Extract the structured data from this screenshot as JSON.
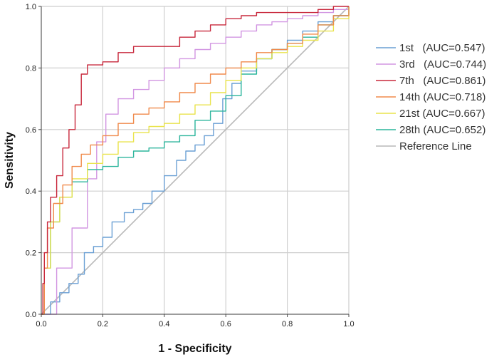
{
  "chart_data": {
    "type": "line",
    "title": "",
    "xlabel": "1 - Specificity",
    "ylabel": "Sensitivity",
    "xlim": [
      0,
      1
    ],
    "ylim": [
      0,
      1
    ],
    "x_ticks": [
      "0.0",
      "0.2",
      "0.4",
      "0.6",
      "0.8",
      "1.0"
    ],
    "y_ticks": [
      "0.0",
      "0.2",
      "0.4",
      "0.6",
      "0.8",
      "1.0"
    ],
    "grid": true,
    "legend_position": "right",
    "series": [
      {
        "name": "1st   (AUC=0.547)",
        "color": "#6a9fd4",
        "points": [
          [
            0,
            0
          ],
          [
            0.03,
            0.04
          ],
          [
            0.06,
            0.07
          ],
          [
            0.09,
            0.1
          ],
          [
            0.12,
            0.13
          ],
          [
            0.14,
            0.2
          ],
          [
            0.17,
            0.22
          ],
          [
            0.2,
            0.25
          ],
          [
            0.23,
            0.3
          ],
          [
            0.27,
            0.33
          ],
          [
            0.3,
            0.34
          ],
          [
            0.33,
            0.36
          ],
          [
            0.36,
            0.4
          ],
          [
            0.4,
            0.45
          ],
          [
            0.44,
            0.5
          ],
          [
            0.47,
            0.53
          ],
          [
            0.5,
            0.55
          ],
          [
            0.53,
            0.58
          ],
          [
            0.56,
            0.62
          ],
          [
            0.59,
            0.7
          ],
          [
            0.62,
            0.75
          ],
          [
            0.65,
            0.79
          ],
          [
            0.7,
            0.83
          ],
          [
            0.75,
            0.86
          ],
          [
            0.8,
            0.89
          ],
          [
            0.85,
            0.92
          ],
          [
            0.9,
            0.95
          ],
          [
            0.95,
            0.97
          ],
          [
            1,
            1
          ]
        ]
      },
      {
        "name": "3rd   (AUC=0.744)",
        "color": "#d296e2",
        "points": [
          [
            0,
            0
          ],
          [
            0.05,
            0.15
          ],
          [
            0.1,
            0.28
          ],
          [
            0.15,
            0.44
          ],
          [
            0.18,
            0.56
          ],
          [
            0.21,
            0.65
          ],
          [
            0.25,
            0.7
          ],
          [
            0.3,
            0.73
          ],
          [
            0.35,
            0.76
          ],
          [
            0.4,
            0.8
          ],
          [
            0.45,
            0.83
          ],
          [
            0.5,
            0.86
          ],
          [
            0.55,
            0.88
          ],
          [
            0.6,
            0.9
          ],
          [
            0.65,
            0.92
          ],
          [
            0.7,
            0.94
          ],
          [
            0.75,
            0.95
          ],
          [
            0.8,
            0.96
          ],
          [
            0.85,
            0.97
          ],
          [
            0.9,
            0.98
          ],
          [
            0.95,
            0.99
          ],
          [
            1,
            1
          ]
        ]
      },
      {
        "name": "7th   (AUC=0.861)",
        "color": "#c8283c",
        "points": [
          [
            0,
            0
          ],
          [
            0.005,
            0.1
          ],
          [
            0.01,
            0.2
          ],
          [
            0.02,
            0.3
          ],
          [
            0.03,
            0.38
          ],
          [
            0.05,
            0.45
          ],
          [
            0.07,
            0.54
          ],
          [
            0.09,
            0.6
          ],
          [
            0.11,
            0.68
          ],
          [
            0.13,
            0.78
          ],
          [
            0.15,
            0.81
          ],
          [
            0.2,
            0.82
          ],
          [
            0.25,
            0.85
          ],
          [
            0.3,
            0.87
          ],
          [
            0.4,
            0.87
          ],
          [
            0.45,
            0.9
          ],
          [
            0.5,
            0.92
          ],
          [
            0.55,
            0.94
          ],
          [
            0.6,
            0.96
          ],
          [
            0.65,
            0.97
          ],
          [
            0.7,
            0.98
          ],
          [
            0.8,
            0.98
          ],
          [
            0.9,
            0.99
          ],
          [
            0.95,
            1
          ],
          [
            1,
            1
          ]
        ]
      },
      {
        "name": "14th (AUC=0.718)",
        "color": "#f08a4b",
        "points": [
          [
            0,
            0
          ],
          [
            0.01,
            0.15
          ],
          [
            0.02,
            0.28
          ],
          [
            0.04,
            0.36
          ],
          [
            0.07,
            0.42
          ],
          [
            0.1,
            0.48
          ],
          [
            0.13,
            0.52
          ],
          [
            0.16,
            0.55
          ],
          [
            0.2,
            0.58
          ],
          [
            0.25,
            0.62
          ],
          [
            0.3,
            0.65
          ],
          [
            0.35,
            0.67
          ],
          [
            0.4,
            0.69
          ],
          [
            0.45,
            0.72
          ],
          [
            0.5,
            0.75
          ],
          [
            0.55,
            0.78
          ],
          [
            0.6,
            0.8
          ],
          [
            0.65,
            0.82
          ],
          [
            0.7,
            0.85
          ],
          [
            0.75,
            0.86
          ],
          [
            0.8,
            0.88
          ],
          [
            0.85,
            0.91
          ],
          [
            0.9,
            0.94
          ],
          [
            0.95,
            0.97
          ],
          [
            1,
            1
          ]
        ]
      },
      {
        "name": "21st (AUC=0.667)",
        "color": "#e9e34c",
        "points": [
          [
            0,
            0
          ],
          [
            0.01,
            0.15
          ],
          [
            0.03,
            0.3
          ],
          [
            0.06,
            0.38
          ],
          [
            0.1,
            0.44
          ],
          [
            0.15,
            0.49
          ],
          [
            0.2,
            0.52
          ],
          [
            0.25,
            0.56
          ],
          [
            0.3,
            0.59
          ],
          [
            0.35,
            0.61
          ],
          [
            0.4,
            0.62
          ],
          [
            0.45,
            0.65
          ],
          [
            0.5,
            0.68
          ],
          [
            0.55,
            0.72
          ],
          [
            0.6,
            0.76
          ],
          [
            0.65,
            0.8
          ],
          [
            0.7,
            0.83
          ],
          [
            0.75,
            0.85
          ],
          [
            0.8,
            0.87
          ],
          [
            0.85,
            0.89
          ],
          [
            0.9,
            0.92
          ],
          [
            0.95,
            0.96
          ],
          [
            1,
            1
          ]
        ]
      },
      {
        "name": "28th (AUC=0.652)",
        "color": "#2cb59c",
        "points": [
          [
            0,
            0
          ],
          [
            0.01,
            0.15
          ],
          [
            0.03,
            0.3
          ],
          [
            0.06,
            0.38
          ],
          [
            0.1,
            0.43
          ],
          [
            0.15,
            0.47
          ],
          [
            0.2,
            0.48
          ],
          [
            0.25,
            0.51
          ],
          [
            0.3,
            0.53
          ],
          [
            0.35,
            0.54
          ],
          [
            0.4,
            0.56
          ],
          [
            0.45,
            0.58
          ],
          [
            0.5,
            0.63
          ],
          [
            0.55,
            0.66
          ],
          [
            0.6,
            0.71
          ],
          [
            0.65,
            0.78
          ],
          [
            0.7,
            0.83
          ],
          [
            0.75,
            0.86
          ],
          [
            0.8,
            0.88
          ],
          [
            0.85,
            0.9
          ],
          [
            0.9,
            0.94
          ],
          [
            0.95,
            0.97
          ],
          [
            1,
            1
          ]
        ]
      },
      {
        "name": "Reference Line",
        "color": "#b9b9b9",
        "points": [
          [
            0,
            0
          ],
          [
            1,
            1
          ]
        ]
      }
    ]
  }
}
